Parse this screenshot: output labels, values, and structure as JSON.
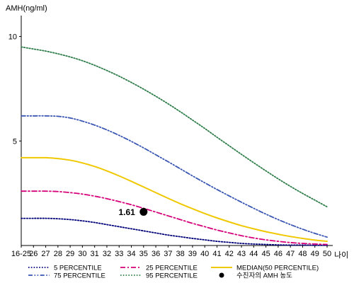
{
  "chart_data": {
    "type": "line",
    "ylabel": "AMH(ng/ml)",
    "xlabel": "나이",
    "y_ticks": [
      "5",
      "10"
    ],
    "x_ticks": [
      "16-25",
      "26",
      "27",
      "28",
      "29",
      "30",
      "31",
      "32",
      "33",
      "34",
      "35",
      "36",
      "37",
      "38",
      "39",
      "40",
      "41",
      "42",
      "43",
      "44",
      "45",
      "46",
      "47",
      "48",
      "49",
      "50"
    ],
    "x": [
      25,
      26,
      27,
      28,
      29,
      30,
      31,
      32,
      33,
      34,
      35,
      36,
      37,
      38,
      39,
      40,
      41,
      42,
      43,
      44,
      45,
      46,
      47,
      48,
      49,
      50
    ],
    "ylim": [
      0,
      11
    ],
    "grid": false,
    "legend_position": "bottom",
    "series": [
      {
        "name": "5 PERCENTILE",
        "color": "#00007a",
        "dash": "dotted",
        "values": [
          1.3,
          1.3,
          1.3,
          1.28,
          1.24,
          1.18,
          1.1,
          1.0,
          0.9,
          0.8,
          0.7,
          0.6,
          0.5,
          0.42,
          0.34,
          0.27,
          0.2,
          0.15,
          0.1,
          0.07,
          0.05,
          0.03,
          0.02,
          0.02,
          0.01,
          0.01
        ]
      },
      {
        "name": "25 PERCENTILE",
        "color": "#d6007a",
        "dash": "dashdot",
        "values": [
          2.6,
          2.6,
          2.6,
          2.58,
          2.53,
          2.46,
          2.36,
          2.24,
          2.1,
          1.95,
          1.78,
          1.6,
          1.42,
          1.24,
          1.06,
          0.9,
          0.74,
          0.6,
          0.47,
          0.36,
          0.27,
          0.2,
          0.14,
          0.1,
          0.07,
          0.05
        ]
      },
      {
        "name": "MEDIAN(50 PERCENTILE)",
        "color": "#f0c800",
        "dash": "solid",
        "values": [
          4.2,
          4.2,
          4.2,
          4.16,
          4.08,
          3.95,
          3.78,
          3.57,
          3.33,
          3.07,
          2.8,
          2.53,
          2.26,
          2.0,
          1.76,
          1.53,
          1.32,
          1.13,
          0.95,
          0.8,
          0.66,
          0.54,
          0.43,
          0.34,
          0.26,
          0.2
        ]
      },
      {
        "name": "75 PERCENTILE",
        "color": "#3a56b4",
        "dash": "dashdotdot",
        "values": [
          6.2,
          6.2,
          6.2,
          6.18,
          6.1,
          5.95,
          5.76,
          5.53,
          5.27,
          4.98,
          4.67,
          4.34,
          4.01,
          3.67,
          3.33,
          3.0,
          2.68,
          2.37,
          2.07,
          1.78,
          1.5,
          1.24,
          1.0,
          0.78,
          0.58,
          0.4
        ]
      },
      {
        "name": "95 PERCENTILE",
        "color": "#2e7d4a",
        "dash": "dotted",
        "values": [
          9.5,
          9.4,
          9.3,
          9.17,
          9.02,
          8.84,
          8.62,
          8.37,
          8.1,
          7.8,
          7.48,
          7.14,
          6.78,
          6.4,
          6.0,
          5.6,
          5.18,
          4.77,
          4.36,
          3.96,
          3.57,
          3.19,
          2.83,
          2.49,
          2.17,
          1.85
        ]
      }
    ],
    "highlight": {
      "name": "수진자의 AMH 농도",
      "x": 35,
      "y": 1.61,
      "label": "1.61",
      "color": "#000000"
    }
  }
}
